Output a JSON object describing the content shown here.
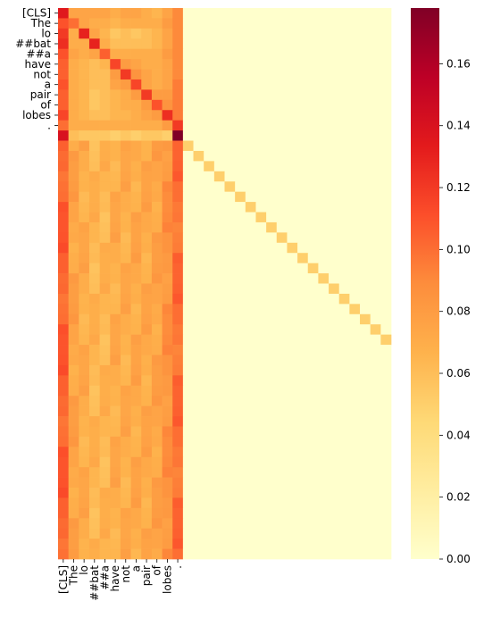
{
  "chart_data": {
    "type": "heatmap",
    "title": "",
    "xlabel": "",
    "ylabel": "",
    "tokens": [
      "[CLS]",
      "The",
      "lo",
      "##bat",
      "##a",
      "have",
      "not",
      "a",
      "pair",
      "of",
      "lobes",
      "."
    ],
    "x_tick_labels": [
      "[CLS]",
      "The",
      "lo",
      "##bat",
      "##a",
      "have",
      "not",
      "a",
      "pair",
      "of",
      "lobes",
      "."
    ],
    "y_tick_labels": [
      "[CLS]",
      "The",
      "lo",
      "##bat",
      "##a",
      "have",
      "not",
      "a",
      "pair",
      "of",
      "lobes",
      "."
    ],
    "n_rows": 54,
    "n_cols": 32,
    "token_rows": [
      [
        0.135,
        0.075,
        0.075,
        0.075,
        0.075,
        0.07,
        0.075,
        0.075,
        0.07,
        0.065,
        0.075,
        0.09
      ],
      [
        0.11,
        0.1,
        0.075,
        0.07,
        0.07,
        0.065,
        0.07,
        0.07,
        0.07,
        0.07,
        0.08,
        0.09
      ],
      [
        0.12,
        0.07,
        0.13,
        0.075,
        0.065,
        0.055,
        0.06,
        0.055,
        0.06,
        0.065,
        0.075,
        0.09
      ],
      [
        0.125,
        0.07,
        0.07,
        0.13,
        0.07,
        0.06,
        0.06,
        0.06,
        0.06,
        0.065,
        0.075,
        0.09
      ],
      [
        0.11,
        0.075,
        0.07,
        0.075,
        0.105,
        0.07,
        0.07,
        0.07,
        0.07,
        0.07,
        0.08,
        0.09
      ],
      [
        0.105,
        0.07,
        0.065,
        0.06,
        0.065,
        0.115,
        0.08,
        0.075,
        0.07,
        0.07,
        0.075,
        0.09
      ],
      [
        0.105,
        0.07,
        0.065,
        0.06,
        0.06,
        0.08,
        0.12,
        0.085,
        0.075,
        0.07,
        0.075,
        0.09
      ],
      [
        0.11,
        0.07,
        0.065,
        0.06,
        0.06,
        0.075,
        0.08,
        0.115,
        0.075,
        0.07,
        0.075,
        0.095
      ],
      [
        0.105,
        0.07,
        0.065,
        0.055,
        0.06,
        0.065,
        0.07,
        0.08,
        0.12,
        0.08,
        0.08,
        0.095
      ],
      [
        0.105,
        0.07,
        0.065,
        0.055,
        0.06,
        0.065,
        0.07,
        0.07,
        0.08,
        0.11,
        0.085,
        0.095
      ],
      [
        0.115,
        0.07,
        0.065,
        0.06,
        0.06,
        0.065,
        0.065,
        0.07,
        0.075,
        0.08,
        0.125,
        0.095
      ],
      [
        0.1,
        0.07,
        0.07,
        0.07,
        0.07,
        0.07,
        0.07,
        0.07,
        0.07,
        0.07,
        0.08,
        0.12
      ]
    ],
    "sep_row": [
      0.14,
      0.06,
      0.055,
      0.055,
      0.055,
      0.05,
      0.055,
      0.05,
      0.055,
      0.055,
      0.05,
      0.178
    ],
    "padding_row_first12": [
      0.105,
      0.075,
      0.07,
      0.065,
      0.065,
      0.07,
      0.07,
      0.072,
      0.072,
      0.075,
      0.085,
      0.1
    ],
    "padding_row_variation": [
      0.0,
      -0.005,
      0.008,
      -0.008,
      0.004,
      -0.004,
      0.006,
      0.0,
      -0.006,
      0.005,
      -0.003,
      0.004
    ],
    "padding_diagonal_value": 0.05,
    "background_value": 0.0,
    "colormap": "YlOrRd",
    "colormap_stops": [
      "#ffffcc",
      "#ffeda0",
      "#fed976",
      "#feb24c",
      "#fd8d3c",
      "#fc4e2a",
      "#e31a1c",
      "#bd0026",
      "#800026"
    ],
    "vmin": 0.0,
    "vmax": 0.178,
    "colorbar_ticks": [
      0.0,
      0.02,
      0.04,
      0.06,
      0.08,
      0.1,
      0.12,
      0.14,
      0.16
    ],
    "colorbar_tick_labels": [
      "0.00",
      "0.02",
      "0.04",
      "0.06",
      "0.08",
      "0.10",
      "0.12",
      "0.14",
      "0.16"
    ]
  }
}
